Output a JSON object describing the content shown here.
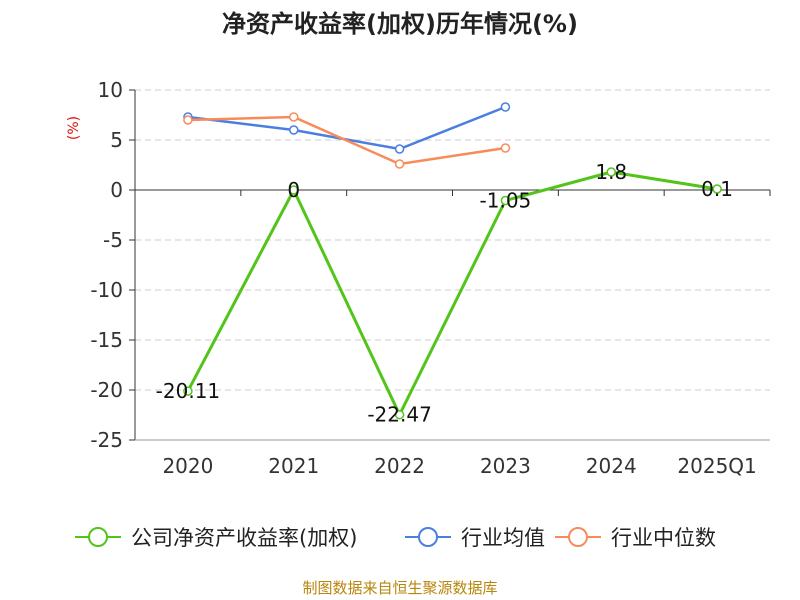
{
  "chart_data": {
    "type": "line",
    "title": "净资产收益率(加权)历年情况(%)",
    "ylabel": "(%)",
    "categories": [
      "2020",
      "2021",
      "2022",
      "2023",
      "2024",
      "2025Q1"
    ],
    "yticks": [
      "10",
      "5",
      "0",
      "-5",
      "-10",
      "-15",
      "-20",
      "-25"
    ],
    "ylim": [
      -25,
      10
    ],
    "grid": true,
    "legend_position": "bottom",
    "series": [
      {
        "name": "公司净资产收益率(加权)",
        "color": "#52c41a",
        "values": [
          -20.11,
          0,
          -22.47,
          -1.05,
          1.8,
          0.1
        ],
        "labels": [
          "-20.11",
          "0",
          "-22.47",
          "-1.05",
          "1.8",
          "0.1"
        ]
      },
      {
        "name": "行业均值",
        "color": "#4a7fe0",
        "values": [
          7.3,
          6.0,
          4.1,
          8.3,
          null,
          null
        ]
      },
      {
        "name": "行业中位数",
        "color": "#f78c5a",
        "values": [
          7.0,
          7.3,
          2.6,
          4.2,
          null,
          null
        ]
      }
    ],
    "source": "制图数据来自恒生聚源数据库"
  }
}
